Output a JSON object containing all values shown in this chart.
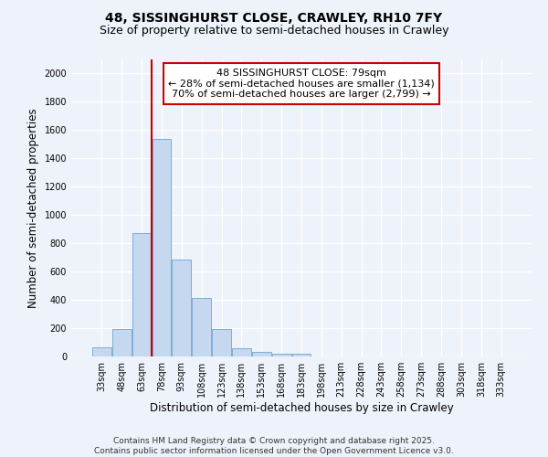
{
  "title_line1": "48, SISSINGHURST CLOSE, CRAWLEY, RH10 7FY",
  "title_line2": "Size of property relative to semi-detached houses in Crawley",
  "xlabel": "Distribution of semi-detached houses by size in Crawley",
  "ylabel": "Number of semi-detached properties",
  "categories": [
    "33sqm",
    "48sqm",
    "63sqm",
    "78sqm",
    "93sqm",
    "108sqm",
    "123sqm",
    "138sqm",
    "153sqm",
    "168sqm",
    "183sqm",
    "198sqm",
    "213sqm",
    "228sqm",
    "243sqm",
    "258sqm",
    "273sqm",
    "288sqm",
    "303sqm",
    "318sqm",
    "333sqm"
  ],
  "values": [
    65,
    195,
    875,
    1535,
    685,
    415,
    195,
    55,
    30,
    20,
    20,
    0,
    0,
    0,
    0,
    0,
    0,
    0,
    0,
    0,
    0
  ],
  "bar_color": "#c5d8f0",
  "bar_edge_color": "#7bafd4",
  "vline_x": 2.5,
  "vline_color": "#cc0000",
  "annotation_text": "48 SISSINGHURST CLOSE: 79sqm\n← 28% of semi-detached houses are smaller (1,134)\n70% of semi-detached houses are larger (2,799) →",
  "ylim": [
    0,
    2100
  ],
  "yticks": [
    0,
    200,
    400,
    600,
    800,
    1000,
    1200,
    1400,
    1600,
    1800,
    2000
  ],
  "background_color": "#eef2fa",
  "grid_color": "#ffffff",
  "footer_text": "Contains HM Land Registry data © Crown copyright and database right 2025.\nContains public sector information licensed under the Open Government Licence v3.0.",
  "title_fontsize": 10,
  "subtitle_fontsize": 9,
  "axis_label_fontsize": 8.5,
  "tick_fontsize": 7,
  "annotation_fontsize": 8,
  "footer_fontsize": 6.5
}
